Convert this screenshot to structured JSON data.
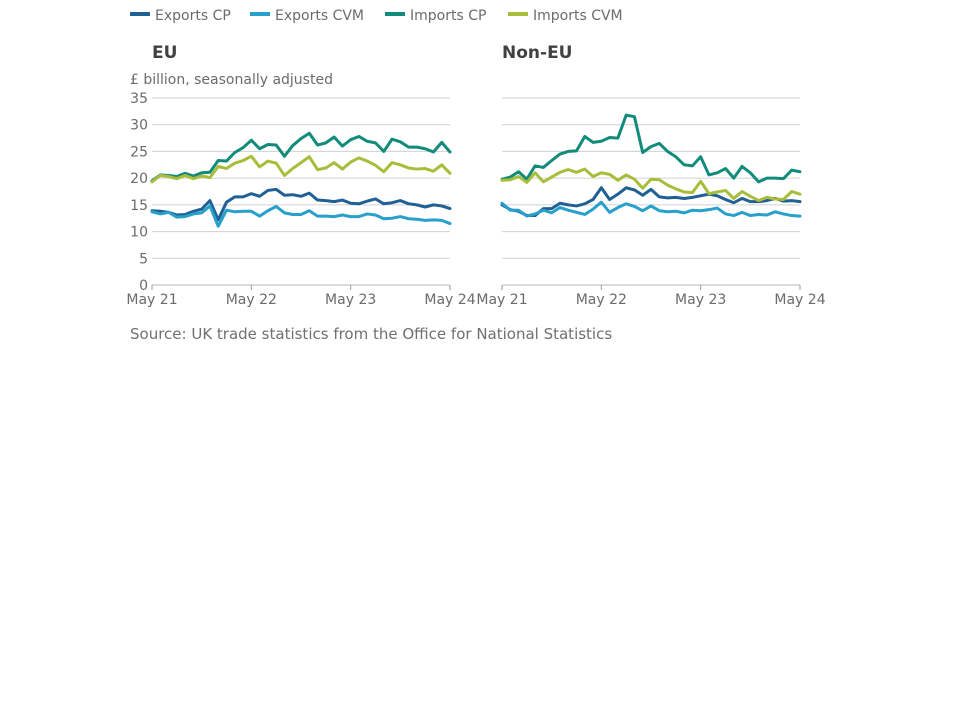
{
  "legend": [
    {
      "label": "Exports CP",
      "color": "#206095"
    },
    {
      "label": "Exports CVM",
      "color": "#27a0cc"
    },
    {
      "label": "Imports CP",
      "color": "#118c7b"
    },
    {
      "label": "Imports CVM",
      "color": "#a8bd3a"
    }
  ],
  "source": "Source: UK trade statistics from the Office for National Statistics",
  "chart_data": [
    {
      "type": "line",
      "title": "EU",
      "ylabel": "£ billion, seasonally adjusted",
      "ylim": [
        0,
        35
      ],
      "yticks": [
        0,
        5,
        10,
        15,
        20,
        25,
        30,
        35
      ],
      "xticks": [
        "May 21",
        "May 22",
        "May 23",
        "May 24"
      ],
      "x_start": "May 21",
      "x_end": "May 24",
      "grid": true,
      "series": [
        {
          "name": "Exports CP",
          "values": [
            13.9,
            13.8,
            13.6,
            13.1,
            13.2,
            13.8,
            14.2,
            15.8,
            12.2,
            15.5,
            16.5,
            16.5,
            17.1,
            16.6,
            17.7,
            17.9,
            16.8,
            16.9,
            16.6,
            17.2,
            15.9,
            15.8,
            15.6,
            15.9,
            15.3,
            15.2,
            15.7,
            16.1,
            15.2,
            15.4,
            15.8,
            15.2,
            15.0,
            14.6,
            15.0,
            14.8,
            14.3
          ]
        },
        {
          "name": "Exports CVM",
          "values": [
            13.7,
            13.3,
            13.6,
            12.7,
            12.8,
            13.3,
            13.5,
            14.8,
            11.0,
            14.0,
            13.7,
            13.8,
            13.8,
            12.9,
            13.9,
            14.7,
            13.5,
            13.2,
            13.2,
            13.9,
            12.9,
            12.9,
            12.8,
            13.1,
            12.8,
            12.8,
            13.3,
            13.1,
            12.4,
            12.5,
            12.8,
            12.4,
            12.3,
            12.1,
            12.2,
            12.1,
            11.5
          ]
        },
        {
          "name": "Imports CP",
          "values": [
            19.5,
            20.6,
            20.5,
            20.3,
            20.9,
            20.4,
            21.0,
            21.1,
            23.3,
            23.2,
            24.8,
            25.7,
            27.1,
            25.5,
            26.3,
            26.2,
            24.1,
            26.1,
            27.4,
            28.4,
            26.2,
            26.6,
            27.7,
            26.0,
            27.2,
            27.8,
            26.9,
            26.6,
            25.0,
            27.3,
            26.8,
            25.8,
            25.8,
            25.5,
            24.9,
            26.7,
            24.9
          ]
        },
        {
          "name": "Imports CVM",
          "values": [
            19.3,
            20.5,
            20.3,
            19.9,
            20.5,
            19.9,
            20.4,
            20.1,
            22.2,
            21.8,
            22.8,
            23.3,
            24.1,
            22.1,
            23.2,
            22.8,
            20.5,
            21.8,
            22.9,
            24.0,
            21.6,
            21.9,
            22.9,
            21.7,
            23.0,
            23.8,
            23.2,
            22.4,
            21.2,
            22.9,
            22.5,
            21.9,
            21.7,
            21.8,
            21.3,
            22.5,
            20.9
          ]
        }
      ]
    },
    {
      "type": "line",
      "title": "Non-EU",
      "ylim": [
        0,
        35
      ],
      "yticks": [
        0,
        5,
        10,
        15,
        20,
        25,
        30,
        35
      ],
      "xticks": [
        "May 21",
        "May 22",
        "May 23",
        "May 24"
      ],
      "x_start": "May 21",
      "x_end": "May 24",
      "grid": true,
      "series": [
        {
          "name": "Exports CP",
          "values": [
            15.0,
            14.1,
            13.8,
            13.0,
            13.0,
            14.3,
            14.3,
            15.3,
            15.0,
            14.8,
            15.2,
            16.0,
            18.2,
            16.0,
            17.0,
            18.2,
            17.8,
            16.8,
            17.9,
            16.5,
            16.3,
            16.4,
            16.2,
            16.4,
            16.7,
            17.0,
            16.7,
            16.0,
            15.4,
            16.2,
            15.6,
            15.6,
            15.8,
            16.2,
            15.7,
            15.8,
            15.6
          ]
        },
        {
          "name": "Exports CVM",
          "values": [
            15.3,
            14.0,
            14.0,
            12.9,
            13.3,
            14.0,
            13.5,
            14.5,
            14.0,
            13.6,
            13.2,
            14.2,
            15.5,
            13.6,
            14.5,
            15.2,
            14.7,
            13.9,
            14.8,
            13.9,
            13.7,
            13.8,
            13.5,
            14.0,
            13.9,
            14.1,
            14.4,
            13.3,
            13.0,
            13.6,
            13.0,
            13.2,
            13.1,
            13.7,
            13.3,
            13.0,
            12.9
          ]
        },
        {
          "name": "Imports CP",
          "values": [
            19.8,
            20.2,
            21.2,
            19.8,
            22.3,
            22.0,
            23.3,
            24.5,
            25.0,
            25.1,
            27.8,
            26.7,
            26.9,
            27.6,
            27.5,
            31.8,
            31.5,
            24.8,
            25.9,
            26.5,
            25.0,
            24.0,
            22.5,
            22.3,
            24.0,
            20.6,
            21.0,
            21.8,
            20.0,
            22.2,
            21.0,
            19.3,
            20.0,
            20.0,
            19.9,
            21.5,
            21.2
          ]
        },
        {
          "name": "Imports CVM",
          "values": [
            19.6,
            19.7,
            20.3,
            19.2,
            21.0,
            19.3,
            20.2,
            21.1,
            21.6,
            21.1,
            21.7,
            20.3,
            21.0,
            20.7,
            19.6,
            20.6,
            19.8,
            18.1,
            19.8,
            19.7,
            18.7,
            18.0,
            17.4,
            17.3,
            19.4,
            17.1,
            17.4,
            17.7,
            16.2,
            17.5,
            16.6,
            15.8,
            16.4,
            16.1,
            16.0,
            17.5,
            17.0
          ]
        }
      ]
    }
  ]
}
